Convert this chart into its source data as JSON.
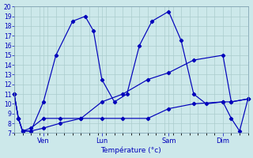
{
  "background_color": "#cce8ea",
  "grid_color": "#aacccc",
  "line_color": "#0000bb",
  "xlabel": "Température (°c)",
  "ylim": [
    7,
    20
  ],
  "yticks": [
    7,
    8,
    9,
    10,
    11,
    12,
    13,
    14,
    15,
    16,
    17,
    18,
    19,
    20
  ],
  "xlim": [
    0,
    56
  ],
  "x_tick_positions": [
    7,
    21,
    37,
    50
  ],
  "x_tick_labels": [
    "Ven",
    "Lun",
    "Sam",
    "Dim"
  ],
  "series1_x": [
    0,
    1,
    2,
    4,
    7,
    10,
    14,
    17,
    19,
    21,
    24,
    27,
    30,
    33,
    37,
    40,
    43,
    46,
    50,
    52,
    54,
    56
  ],
  "series1_y": [
    11,
    8.5,
    7.2,
    7.2,
    10.2,
    15.0,
    18.5,
    19.0,
    17.5,
    12.5,
    10.2,
    11.0,
    16.0,
    18.5,
    19.5,
    16.5,
    11.0,
    10.0,
    10.2,
    8.5,
    7.2,
    10.5
  ],
  "series2_x": [
    0,
    1,
    2,
    4,
    7,
    11,
    16,
    21,
    26,
    32,
    37,
    43,
    50,
    52,
    56
  ],
  "series2_y": [
    11,
    8.5,
    7.2,
    7.5,
    8.5,
    8.5,
    8.5,
    10.2,
    11.0,
    12.5,
    13.2,
    14.5,
    15.0,
    10.2,
    10.5
  ],
  "series3_x": [
    0,
    1,
    2,
    4,
    7,
    11,
    16,
    21,
    26,
    32,
    37,
    43,
    50,
    52,
    56
  ],
  "series3_y": [
    11,
    8.5,
    7.2,
    7.2,
    7.5,
    8.0,
    8.5,
    8.5,
    8.5,
    8.5,
    9.5,
    10.0,
    10.2,
    10.2,
    10.5
  ]
}
